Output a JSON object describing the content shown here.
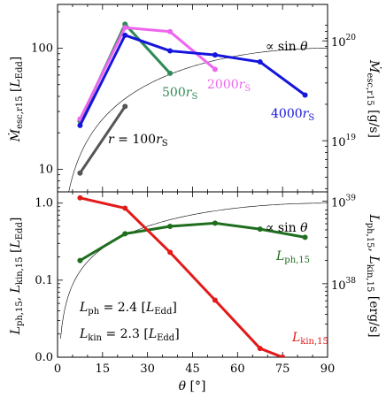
{
  "chart_data": [
    {
      "type": "line",
      "panel": "top",
      "ylabel_left": "Ṁesc,r15 [LEdd]",
      "ylabel_right": "Ṁesc,r15 [g/s]",
      "yscale": "log",
      "ylim": [
        6.5,
        230
      ],
      "xlim": [
        0,
        90
      ],
      "yticks": [
        {
          "v": 10,
          "label": "10"
        },
        {
          "v": 100,
          "label": "100"
        }
      ],
      "yticks_right": [
        {
          "v": 17.2,
          "label": "10",
          "exp": "19"
        },
        {
          "v": 115,
          "label": "10",
          "exp": "20"
        }
      ],
      "reference_curve": {
        "label": "∝ sin θ",
        "amplitude": 100,
        "x_from": 1,
        "style": "thin-black"
      },
      "series": [
        {
          "name": "r = 100rS",
          "color": "#555555",
          "x": [
            7.5,
            22.5
          ],
          "y": [
            9.3,
            33
          ]
        },
        {
          "name": "500rS",
          "color": "#2e8b57",
          "x": [
            7.5,
            22.5,
            37.5
          ],
          "y": [
            25,
            158,
            62
          ]
        },
        {
          "name": "2000rS",
          "color": "#ee66ee",
          "x": [
            7.5,
            22.5,
            37.5,
            52.5
          ],
          "y": [
            26,
            148,
            137,
            67
          ]
        },
        {
          "name": "4000rS",
          "color": "#1515dd",
          "x": [
            7.5,
            22.5,
            37.5,
            52.5,
            67.5,
            82.5
          ],
          "y": [
            23,
            128,
            95,
            88,
            77,
            41
          ]
        }
      ]
    },
    {
      "type": "line",
      "panel": "bottom",
      "ylabel_left": "Lph,15, Lkin,15 [LEdd]",
      "ylabel_right": "Lph,15, Lkin,15 [erg/s]",
      "xlabel": "θ [°]",
      "yscale": "log",
      "ylim": [
        0.01,
        1.4
      ],
      "xlim": [
        0,
        90
      ],
      "xticks": [
        0,
        15,
        30,
        45,
        60,
        75,
        90
      ],
      "yticks": [
        {
          "v": 0.01,
          "label": "0.0"
        },
        {
          "v": 0.1,
          "label": "0.1"
        },
        {
          "v": 1,
          "label": "1.0"
        }
      ],
      "yticks_right": [
        {
          "v": 0.09,
          "label": "10",
          "exp": "38"
        },
        {
          "v": 1.06,
          "label": "10",
          "exp": "39"
        }
      ],
      "reference_curve": {
        "label": "∝ sin θ",
        "amplitude": 1,
        "x_from": 1,
        "style": "thin-black"
      },
      "series": [
        {
          "name": "Lph,15",
          "color": "#1e6e1e",
          "x": [
            7.5,
            22.5,
            37.5,
            52.5,
            67.5,
            82.5
          ],
          "y": [
            0.18,
            0.4,
            0.5,
            0.55,
            0.46,
            0.36
          ]
        },
        {
          "name": "Lkin,15",
          "color": "#e21a1a",
          "x": [
            7.5,
            22.5,
            37.5,
            52.5,
            67.5,
            75
          ],
          "y": [
            1.17,
            0.86,
            0.23,
            0.055,
            0.013,
            0.01
          ]
        }
      ],
      "annotations": [
        "Lph = 2.4 [LEdd]",
        "Lkin = 2.3 [LEdd]"
      ]
    }
  ]
}
